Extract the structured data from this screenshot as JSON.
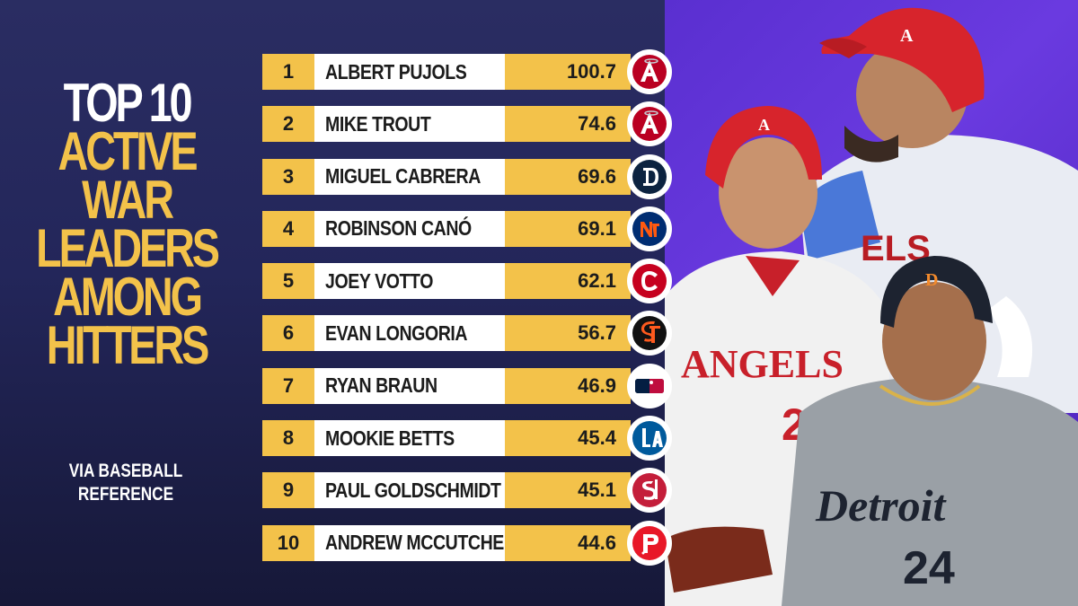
{
  "title": {
    "line1": "TOP 10",
    "line2": "ACTIVE WAR",
    "line3": "LEADERS",
    "line4": "AMONG",
    "line5": "HITTERS"
  },
  "source": {
    "line1": "VIA BASEBALL",
    "line2": "REFERENCE"
  },
  "colors": {
    "gold": "#f3c24a",
    "navy": "#23265a",
    "purple": "#5a2fd0"
  },
  "rows": [
    {
      "rank": "1",
      "name": "ALBERT PUJOLS",
      "war": "100.7",
      "team_logo": "angels-logo-icon"
    },
    {
      "rank": "2",
      "name": "MIKE TROUT",
      "war": "74.6",
      "team_logo": "angels-logo-icon"
    },
    {
      "rank": "3",
      "name": "MIGUEL CABRERA",
      "war": "69.6",
      "team_logo": "tigers-logo-icon"
    },
    {
      "rank": "4",
      "name": "ROBINSON CANÓ",
      "war": "69.1",
      "team_logo": "mets-logo-icon"
    },
    {
      "rank": "5",
      "name": "JOEY VOTTO",
      "war": "62.1",
      "team_logo": "reds-logo-icon"
    },
    {
      "rank": "6",
      "name": "EVAN LONGORIA",
      "war": "56.7",
      "team_logo": "giants-logo-icon"
    },
    {
      "rank": "7",
      "name": "RYAN BRAUN",
      "war": "46.9",
      "team_logo": "mlb-logo-icon"
    },
    {
      "rank": "8",
      "name": "MOOKIE BETTS",
      "war": "45.4",
      "team_logo": "dodgers-logo-icon"
    },
    {
      "rank": "9",
      "name": "PAUL GOLDSCHMIDT",
      "war": "45.1",
      "team_logo": "cardinals-logo-icon"
    },
    {
      "rank": "10",
      "name": "ANDREW MCCUTCHEN",
      "war": "44.6",
      "team_logo": "phillies-logo-icon"
    }
  ],
  "players": {
    "jersey1": "ANGELS",
    "jersey1_number": "2",
    "jersey2": "Detroit",
    "jersey2_number": "24",
    "helmet_a": "A",
    "helmet_d": "D",
    "jersey_top": "ELS"
  }
}
